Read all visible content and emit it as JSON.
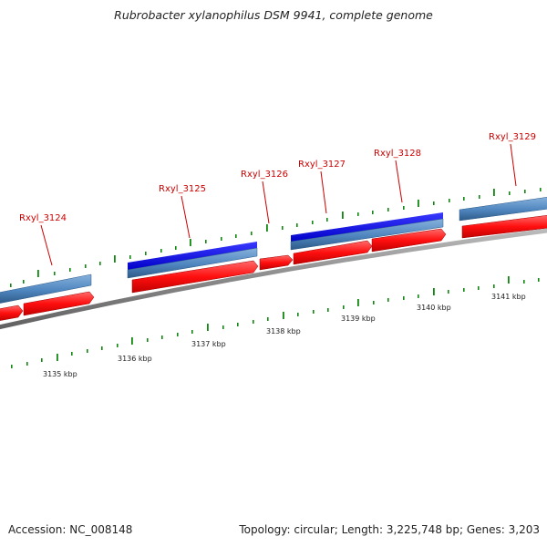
{
  "title": "Rubrobacter xylanophilus DSM 9941, complete genome",
  "footer": {
    "accession": "Accession: NC_008148",
    "summary": "Topology: circular; Length: 3,225,748 bp; Genes: 3,203"
  },
  "colors": {
    "gene_label": "#cc0000",
    "gene_pointer": "#cc0000",
    "cds_forward": "#0000ee",
    "gene_forward": "#4f86bf",
    "gene_reverse": "#ee1111",
    "backbone": "#888888",
    "tick": "#118811"
  },
  "genes": [
    {
      "name": "Rxyl_3124",
      "strand": "reverse"
    },
    {
      "name": "Rxyl_3125",
      "strand": "forward"
    },
    {
      "name": "Rxyl_3126",
      "strand": "reverse"
    },
    {
      "name": "Rxyl_3127",
      "strand": "forward"
    },
    {
      "name": "Rxyl_3128",
      "strand": "reverse"
    },
    {
      "name": "Rxyl_3129",
      "strand": "forward"
    }
  ],
  "scale_labels": [
    "3135 kbp",
    "3136 kbp",
    "3137 kbp",
    "3138 kbp",
    "3139 kbp",
    "3140 kbp",
    "3141 kbp"
  ]
}
